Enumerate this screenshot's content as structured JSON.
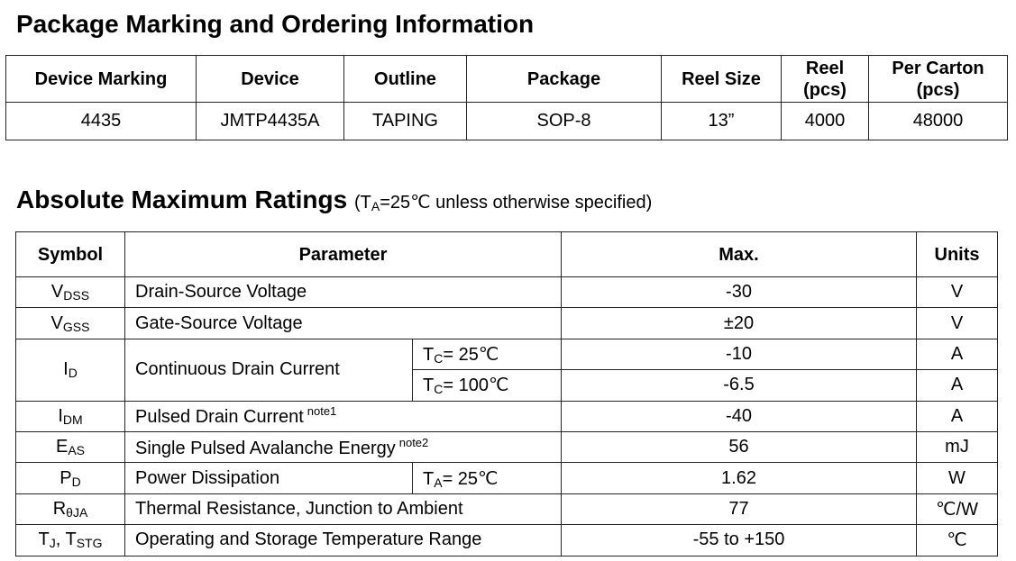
{
  "title": "Package Marking and Ordering Information",
  "ordering": {
    "header": [
      [
        "Device Marking"
      ],
      [
        "Device"
      ],
      [
        "Outline"
      ],
      [
        "Package"
      ],
      [
        "Reel Size"
      ],
      [
        "Reel",
        "(pcs)"
      ],
      [
        "Per Carton",
        "(pcs)"
      ]
    ],
    "rows": [
      [
        "4435",
        "JMTP4435A",
        "TAPING",
        "SOP-8",
        "13”",
        "4000",
        "48000"
      ]
    ]
  },
  "ratings_title": "Absolute Maximum Ratings",
  "ratings_subtitle": {
    "pre": "(T",
    "sub": "A",
    "post": "=25℃ unless otherwise specified)"
  },
  "ratings": {
    "header": [
      "Symbol",
      "Parameter",
      "Max.",
      "Units"
    ],
    "rows": [
      {
        "symbol": [
          [
            "V",
            "DSS"
          ]
        ],
        "parameter": "Drain-Source Voltage",
        "max": "-30",
        "units": "V"
      },
      {
        "symbol": [
          [
            "V",
            "GSS"
          ]
        ],
        "parameter": "Gate-Source Voltage",
        "max": "±20",
        "units": "V"
      },
      {
        "symbol": [
          [
            "I",
            "D"
          ]
        ],
        "parameter": "Continuous Drain Current",
        "conditions": [
          {
            "symbol": "T",
            "sub": "C",
            "value": "= 25℃",
            "max": "-10",
            "units": "A"
          },
          {
            "symbol": "T",
            "sub": "C",
            "value": "= 100℃",
            "max": "-6.5",
            "units": "A"
          }
        ]
      },
      {
        "symbol": [
          [
            "I",
            "DM"
          ]
        ],
        "parameter": "Pulsed Drain Current",
        "note": "note1",
        "max": "-40",
        "units": "A"
      },
      {
        "symbol": [
          [
            "E",
            "AS"
          ]
        ],
        "parameter": "Single Pulsed Avalanche Energy",
        "note": "note2",
        "max": "56",
        "units": "mJ"
      },
      {
        "symbol": [
          [
            "P",
            "D"
          ]
        ],
        "parameter": "Power Dissipation",
        "conditions": [
          {
            "symbol": "T",
            "sub": "A",
            "value": "= 25℃",
            "max": "1.62",
            "units": "W"
          }
        ]
      },
      {
        "symbol": [
          [
            "R",
            "θJA"
          ]
        ],
        "parameter": "Thermal Resistance, Junction to Ambient",
        "max": "77",
        "units": "℃/W"
      },
      {
        "symbol": [
          [
            "T",
            "J"
          ],
          [
            ", T",
            "STG"
          ]
        ],
        "parameter": "Operating and Storage Temperature Range",
        "max": "-55 to +150",
        "units": "℃"
      }
    ]
  }
}
